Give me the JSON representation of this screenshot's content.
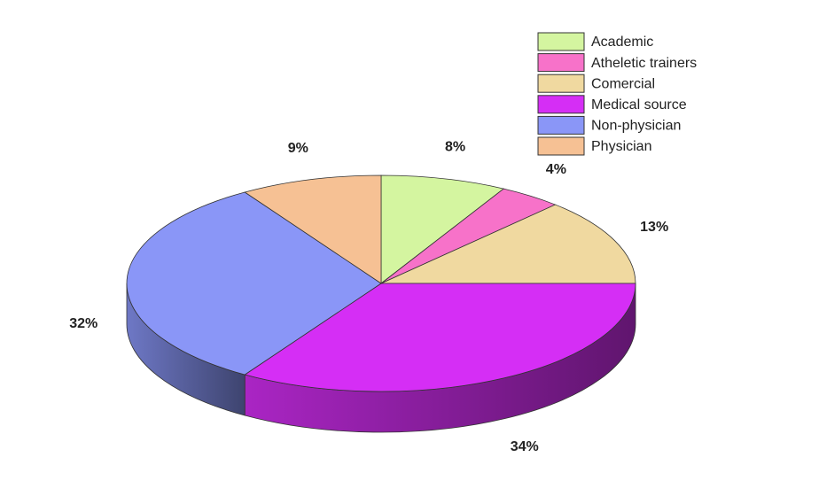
{
  "chart_data": {
    "type": "pie3d",
    "categories": [
      "Academic",
      "Atheletic trainers",
      "Comercial",
      "Medical source",
      "Non-physician",
      "Physician"
    ],
    "values": [
      8,
      4,
      13,
      34,
      32,
      9
    ],
    "value_labels": [
      "8%",
      "4%",
      "13%",
      "34%",
      "32%",
      "9%"
    ],
    "colors": [
      "#d4f5a0",
      "#f772c9",
      "#f0d9a0",
      "#d52ef5",
      "#8a96f7",
      "#f6c194"
    ],
    "legend": "top-right"
  }
}
